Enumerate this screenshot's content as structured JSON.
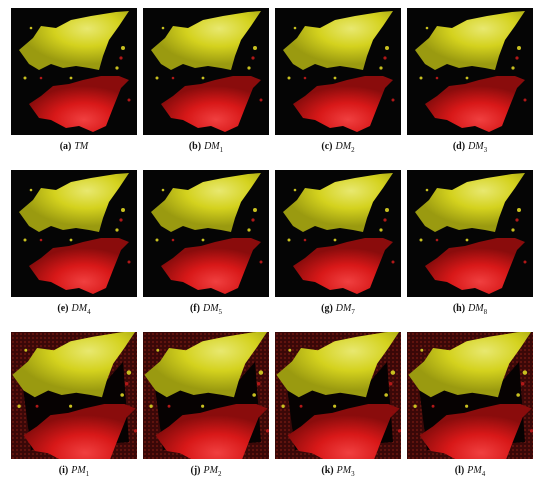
{
  "figure": {
    "panels": [
      {
        "label": "(a)",
        "name": "TM"
      },
      {
        "label": "(b)",
        "name": "DM",
        "sub": "1"
      },
      {
        "label": "(c)",
        "name": "DM",
        "sub": "2"
      },
      {
        "label": "(d)",
        "name": "DM",
        "sub": "3"
      },
      {
        "label": "(e)",
        "name": "DM",
        "sub": "4"
      },
      {
        "label": "(f)",
        "name": "DM",
        "sub": "5"
      },
      {
        "label": "(g)",
        "name": "DM",
        "sub": "7"
      },
      {
        "label": "(h)",
        "name": "DM",
        "sub": "8"
      },
      {
        "label": "(i)",
        "name": "PM",
        "sub": "1"
      },
      {
        "label": "(j)",
        "name": "PM",
        "sub": "2"
      },
      {
        "label": "(k)",
        "name": "PM",
        "sub": "3"
      },
      {
        "label": "(l)",
        "name": "PM",
        "sub": "4"
      }
    ]
  }
}
